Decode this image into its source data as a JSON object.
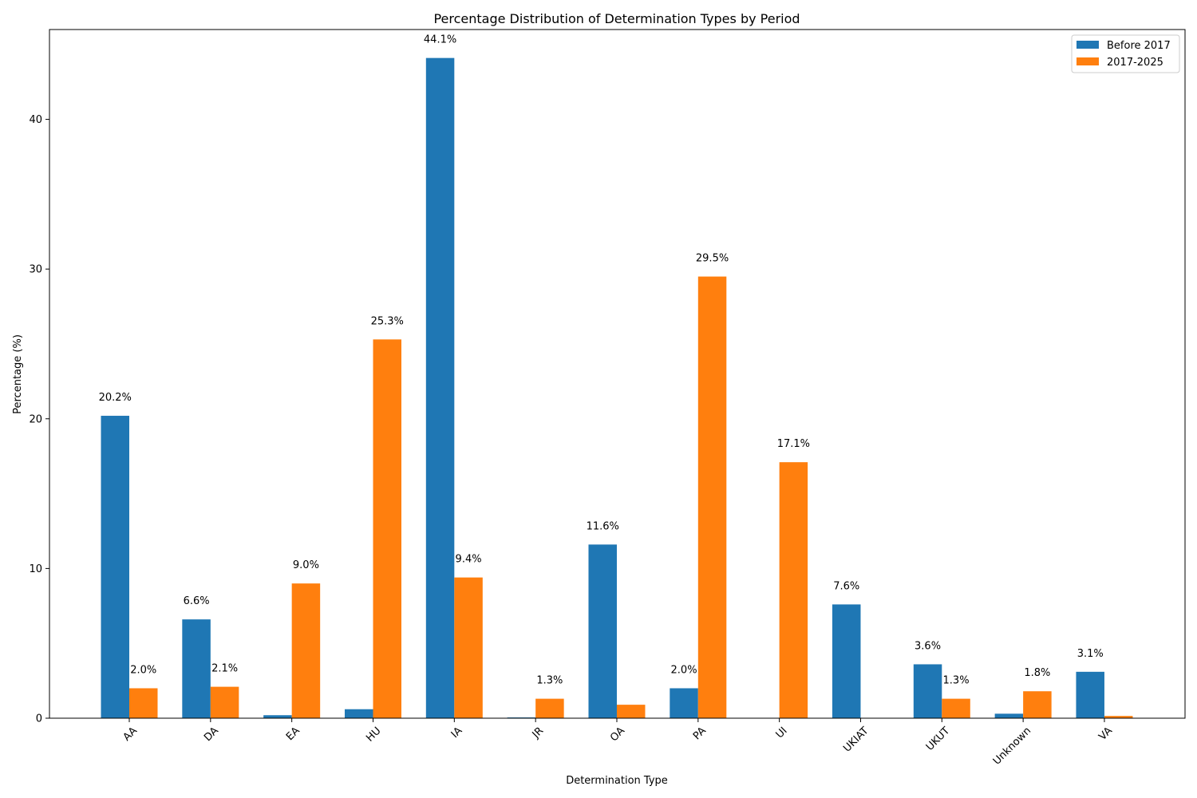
{
  "chart_data": {
    "type": "bar",
    "title": "Percentage Distribution of Determination Types by Period",
    "xlabel": "Determination Type",
    "ylabel": "Percentage (%)",
    "ylim": [
      0,
      46
    ],
    "yticks": [
      0,
      10,
      20,
      30,
      40
    ],
    "grid": false,
    "legend_position": "top-right",
    "categories": [
      "AA",
      "DA",
      "EA",
      "HU",
      "IA",
      "JR",
      "OA",
      "PA",
      "UI",
      "UKIAT",
      "UKUT",
      "Unknown",
      "VA"
    ],
    "series": [
      {
        "name": "Before 2017",
        "color": "#1f77b4",
        "values": [
          20.2,
          6.6,
          0.2,
          0.6,
          44.1,
          0.05,
          11.6,
          2.0,
          0.0,
          7.6,
          3.6,
          0.3,
          3.1
        ],
        "labels": [
          "20.2%",
          "6.6%",
          "",
          "",
          "44.1%",
          "",
          "11.6%",
          "2.0%",
          "",
          "7.6%",
          "3.6%",
          "",
          "3.1%"
        ]
      },
      {
        "name": "2017-2025",
        "color": "#ff7f0e",
        "values": [
          2.0,
          2.1,
          9.0,
          25.3,
          9.4,
          1.3,
          0.9,
          29.5,
          17.1,
          0.0,
          1.3,
          1.8,
          0.15
        ],
        "labels": [
          "2.0%",
          "2.1%",
          "9.0%",
          "25.3%",
          "9.4%",
          "1.3%",
          "",
          "29.5%",
          "17.1%",
          "",
          "1.3%",
          "1.8%",
          ""
        ]
      }
    ]
  }
}
